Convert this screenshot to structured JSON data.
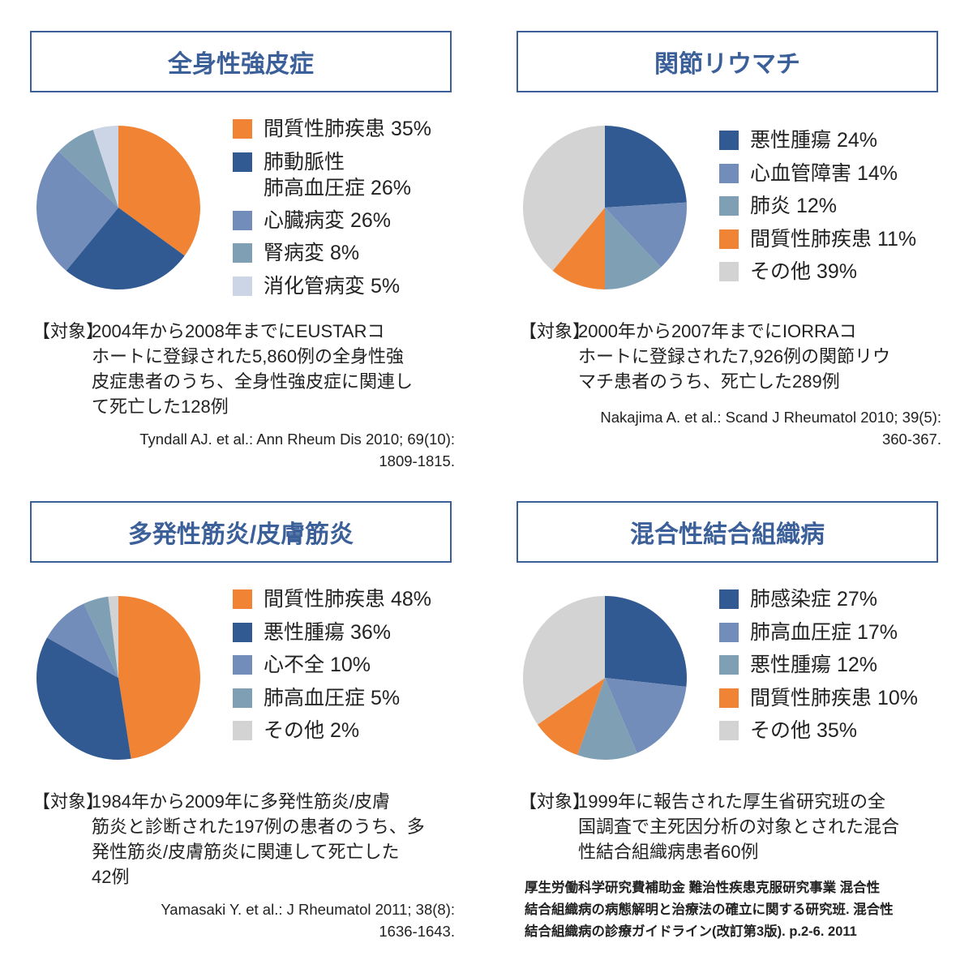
{
  "colors": {
    "orange": "#f08334",
    "dark_blue": "#315a92",
    "mid_blue": "#738dba",
    "steel": "#7f9fb5",
    "pale": "#cbd5e6",
    "gray": "#d3d3d3",
    "title": "#3b5f99"
  },
  "chart_data": [
    {
      "type": "pie",
      "title": "全身性強皮症",
      "start": "top",
      "direction": "clockwise",
      "slices": [
        {
          "label": "間質性肺疾患",
          "value": 35,
          "color": "#f08334",
          "label_lines": [
            "間質性肺疾患 35%"
          ]
        },
        {
          "label": "肺動脈性肺高血圧症",
          "value": 26,
          "color": "#315a92",
          "label_lines": [
            "肺動脈性",
            "肺高血圧症 26%"
          ]
        },
        {
          "label": "心臓病変",
          "value": 26,
          "color": "#738dba",
          "label_lines": [
            "心臓病変 26%"
          ]
        },
        {
          "label": "腎病変",
          "value": 8,
          "color": "#7f9fb5",
          "label_lines": [
            "腎病変 8%"
          ]
        },
        {
          "label": "消化管病変",
          "value": 5,
          "color": "#cbd5e6",
          "label_lines": [
            "消化管病変 5%"
          ]
        }
      ],
      "note_label": "【対象】",
      "note_lines": [
        "2004年から2008年までにEUSTARコ",
        "ホートに登録された5,860例の全身性強",
        "皮症患者のうち、全身性強皮症に関連し",
        "て死亡した128例"
      ],
      "citation_lines": [
        "Tyndall AJ. et al.: Ann Rheum Dis 2010; 69(10):",
        "1809-1815."
      ]
    },
    {
      "type": "pie",
      "title": "関節リウマチ",
      "start": "top",
      "direction": "clockwise",
      "slices": [
        {
          "label": "悪性腫瘍",
          "value": 24,
          "color": "#315a92",
          "label_lines": [
            "悪性腫瘍 24%"
          ]
        },
        {
          "label": "心血管障害",
          "value": 14,
          "color": "#738dba",
          "label_lines": [
            "心血管障害 14%"
          ]
        },
        {
          "label": "肺炎",
          "value": 12,
          "color": "#7f9fb5",
          "label_lines": [
            "肺炎 12%"
          ]
        },
        {
          "label": "間質性肺疾患",
          "value": 11,
          "color": "#f08334",
          "label_lines": [
            "間質性肺疾患 11%"
          ]
        },
        {
          "label": "その他",
          "value": 39,
          "color": "#d3d3d3",
          "label_lines": [
            "その他 39%"
          ]
        }
      ],
      "note_label": "【対象】",
      "note_lines": [
        "2000年から2007年までにIORRAコ",
        "ホートに登録された7,926例の関節リウ",
        "マチ患者のうち、死亡した289例"
      ],
      "citation_lines": [
        "Nakajima A. et al.: Scand J Rheumatol 2010; 39(5):",
        "360-367."
      ]
    },
    {
      "type": "pie",
      "title": "多発性筋炎/皮膚筋炎",
      "start": "top",
      "direction": "clockwise",
      "slices": [
        {
          "label": "間質性肺疾患",
          "value": 48,
          "color": "#f08334",
          "label_lines": [
            "間質性肺疾患 48%"
          ]
        },
        {
          "label": "悪性腫瘍",
          "value": 36,
          "color": "#315a92",
          "label_lines": [
            "悪性腫瘍 36%"
          ]
        },
        {
          "label": "心不全",
          "value": 10,
          "color": "#738dba",
          "label_lines": [
            "心不全 10%"
          ]
        },
        {
          "label": "肺高血圧症",
          "value": 5,
          "color": "#7f9fb5",
          "label_lines": [
            "肺高血圧症 5%"
          ]
        },
        {
          "label": "その他",
          "value": 2,
          "color": "#d3d3d3",
          "label_lines": [
            "その他 2%"
          ]
        }
      ],
      "note_label": "【対象】",
      "note_lines": [
        "1984年から2009年に多発性筋炎/皮膚",
        "筋炎と診断された197例の患者のうち、多",
        "発性筋炎/皮膚筋炎に関連して死亡した",
        "42例"
      ],
      "citation_lines": [
        "Yamasaki Y. et al.: J Rheumatol 2011; 38(8):",
        "1636-1643."
      ]
    },
    {
      "type": "pie",
      "title": "混合性結合組織病",
      "start": "top",
      "direction": "clockwise",
      "slices": [
        {
          "label": "肺感染症",
          "value": 27,
          "color": "#315a92",
          "label_lines": [
            "肺感染症 27%"
          ]
        },
        {
          "label": "肺高血圧症",
          "value": 17,
          "color": "#738dba",
          "label_lines": [
            "肺高血圧症 17%"
          ]
        },
        {
          "label": "悪性腫瘍",
          "value": 12,
          "color": "#7f9fb5",
          "label_lines": [
            "悪性腫瘍 12%"
          ]
        },
        {
          "label": "間質性肺疾患",
          "value": 10,
          "color": "#f08334",
          "label_lines": [
            "間質性肺疾患 10%"
          ]
        },
        {
          "label": "その他",
          "value": 35,
          "color": "#d3d3d3",
          "label_lines": [
            "その他 35%"
          ]
        }
      ],
      "note_label": "【対象】",
      "note_lines": [
        "1999年に報告された厚生省研究班の全",
        "国調査で主死因分析の対象とされた混合",
        "性結合組織病患者60例"
      ],
      "citation_lines": [
        "厚生労働科学研究費補助金 難治性疾患克服研究事業 混合性",
        "結合組織病の病態解明と治療法の確立に関する研究班. 混合性",
        "結合組織病の診療ガイドライン(改訂第3版). p.2-6. 2011"
      ]
    }
  ]
}
